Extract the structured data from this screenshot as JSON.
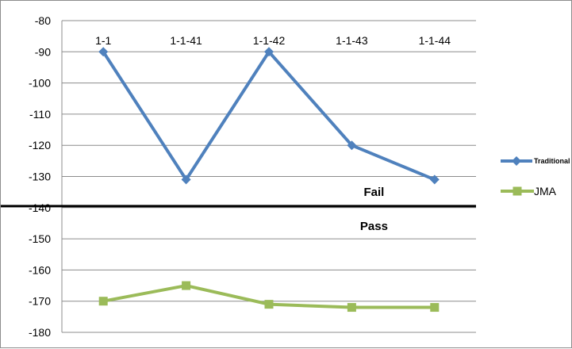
{
  "chart_data": {
    "type": "line",
    "categories": [
      "1-1",
      "1-1-41",
      "1-1-42",
      "1-1-43",
      "1-1-44"
    ],
    "ylim": [
      -180,
      -80
    ],
    "yticks": [
      -80,
      -90,
      -100,
      -110,
      -120,
      -130,
      -140,
      -150,
      -160,
      -170,
      -180
    ],
    "grid": true,
    "legend": "right",
    "series": [
      {
        "name": "Traditional",
        "values": [
          -90,
          -131,
          -90,
          -120,
          -131
        ],
        "color": "#4f81bd",
        "marker": "diamond"
      },
      {
        "name": "JMA",
        "values": [
          -170,
          -165,
          -171,
          -172,
          -172
        ],
        "color": "#9bbb59",
        "marker": "square"
      }
    ],
    "threshold": {
      "value": -139.5,
      "color": "#000000"
    },
    "annotations": {
      "above": "Fail",
      "below": "Pass"
    }
  }
}
